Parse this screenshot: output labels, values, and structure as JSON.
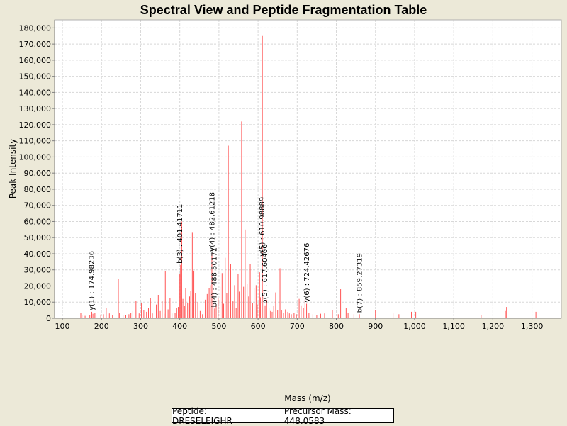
{
  "chart_data": {
    "type": "bar",
    "title": "Spectral View and Peptide Fragmentation Table",
    "xlabel": "Mass (m/z)",
    "ylabel": "Peak Intensity",
    "xlim": [
      80,
      1375
    ],
    "ylim": [
      0,
      185000
    ],
    "xticks": [
      100,
      200,
      300,
      400,
      500,
      600,
      700,
      800,
      900,
      1000,
      1100,
      1200,
      1300
    ],
    "xtick_labels": [
      "100",
      "200",
      "300",
      "400",
      "500",
      "600",
      "700",
      "800",
      "900",
      "1,000",
      "1,100",
      "1,200",
      "1,300"
    ],
    "yticks": [
      0,
      10000,
      20000,
      30000,
      40000,
      50000,
      60000,
      70000,
      80000,
      90000,
      100000,
      110000,
      120000,
      130000,
      140000,
      150000,
      160000,
      170000,
      180000
    ],
    "ytick_labels": [
      "0",
      "10,000",
      "20,000",
      "30,000",
      "40,000",
      "50,000",
      "60,000",
      "70,000",
      "80,000",
      "90,000",
      "100,000",
      "110,000",
      "120,000",
      "130,000",
      "140,000",
      "150,000",
      "160,000",
      "170,000",
      "180,000"
    ],
    "grid": true,
    "peak_color": "#ff5555",
    "peaks": [
      [
        147,
        3500
      ],
      [
        150,
        2000
      ],
      [
        158,
        1500
      ],
      [
        170,
        2200
      ],
      [
        175,
        4000
      ],
      [
        178,
        2800
      ],
      [
        183,
        3200
      ],
      [
        186,
        1800
      ],
      [
        198,
        2300
      ],
      [
        205,
        2500
      ],
      [
        212,
        6500
      ],
      [
        220,
        3000
      ],
      [
        228,
        2000
      ],
      [
        243,
        24500
      ],
      [
        246,
        3500
      ],
      [
        255,
        2000
      ],
      [
        262,
        1800
      ],
      [
        270,
        2500
      ],
      [
        275,
        3500
      ],
      [
        280,
        4500
      ],
      [
        288,
        11000
      ],
      [
        296,
        3000
      ],
      [
        302,
        9500
      ],
      [
        308,
        5000
      ],
      [
        315,
        4000
      ],
      [
        320,
        6500
      ],
      [
        325,
        12500
      ],
      [
        330,
        3000
      ],
      [
        340,
        8500
      ],
      [
        345,
        14500
      ],
      [
        350,
        4500
      ],
      [
        355,
        11000
      ],
      [
        360,
        2800
      ],
      [
        363,
        29000
      ],
      [
        370,
        5500
      ],
      [
        375,
        12500
      ],
      [
        380,
        3000
      ],
      [
        388,
        3500
      ],
      [
        392,
        6500
      ],
      [
        396,
        7000
      ],
      [
        400,
        27500
      ],
      [
        402,
        33000
      ],
      [
        405,
        60000
      ],
      [
        408,
        12000
      ],
      [
        412,
        7500
      ],
      [
        415,
        18500
      ],
      [
        420,
        9500
      ],
      [
        425,
        13500
      ],
      [
        428,
        17000
      ],
      [
        432,
        53000
      ],
      [
        436,
        29500
      ],
      [
        440,
        15500
      ],
      [
        446,
        10000
      ],
      [
        452,
        4500
      ],
      [
        458,
        2500
      ],
      [
        465,
        11500
      ],
      [
        470,
        15000
      ],
      [
        475,
        18500
      ],
      [
        478,
        20500
      ],
      [
        482,
        40500
      ],
      [
        485,
        16000
      ],
      [
        489,
        6000
      ],
      [
        493,
        8500
      ],
      [
        498,
        12500
      ],
      [
        503,
        19500
      ],
      [
        508,
        28000
      ],
      [
        512,
        9000
      ],
      [
        516,
        37500
      ],
      [
        520,
        15500
      ],
      [
        524,
        107000
      ],
      [
        530,
        33500
      ],
      [
        536,
        10500
      ],
      [
        540,
        20500
      ],
      [
        544,
        6500
      ],
      [
        549,
        27500
      ],
      [
        552,
        16500
      ],
      [
        558,
        122000
      ],
      [
        563,
        19500
      ],
      [
        567,
        55000
      ],
      [
        572,
        21500
      ],
      [
        576,
        13500
      ],
      [
        580,
        33500
      ],
      [
        586,
        9500
      ],
      [
        590,
        18500
      ],
      [
        595,
        20500
      ],
      [
        598,
        8500
      ],
      [
        604,
        28500
      ],
      [
        606,
        13000
      ],
      [
        611,
        175000
      ],
      [
        615,
        17500
      ],
      [
        618,
        8000
      ],
      [
        622,
        11500
      ],
      [
        628,
        6500
      ],
      [
        632,
        4500
      ],
      [
        636,
        4000
      ],
      [
        640,
        7500
      ],
      [
        645,
        16000
      ],
      [
        650,
        5000
      ],
      [
        656,
        31000
      ],
      [
        660,
        5000
      ],
      [
        665,
        3500
      ],
      [
        670,
        5500
      ],
      [
        676,
        4000
      ],
      [
        680,
        3000
      ],
      [
        685,
        2500
      ],
      [
        692,
        3500
      ],
      [
        698,
        2500
      ],
      [
        705,
        12000
      ],
      [
        710,
        8000
      ],
      [
        716,
        6500
      ],
      [
        720,
        11500
      ],
      [
        724,
        9000
      ],
      [
        730,
        3500
      ],
      [
        740,
        2500
      ],
      [
        750,
        2000
      ],
      [
        760,
        2800
      ],
      [
        770,
        3000
      ],
      [
        790,
        5000
      ],
      [
        805,
        2500
      ],
      [
        811,
        18000
      ],
      [
        825,
        6500
      ],
      [
        830,
        3500
      ],
      [
        845,
        2500
      ],
      [
        859,
        2500
      ],
      [
        900,
        5000
      ],
      [
        945,
        3000
      ],
      [
        960,
        2500
      ],
      [
        992,
        4000
      ],
      [
        1003,
        4000
      ],
      [
        1170,
        2000
      ],
      [
        1232,
        4500
      ],
      [
        1235,
        7000
      ],
      [
        1310,
        4000
      ]
    ],
    "annotations": [
      {
        "label": "y(1) : 174.98236",
        "x": 175,
        "y": 4000
      },
      {
        "label": "b(3) : 401.41711",
        "x": 401,
        "y": 33000
      },
      {
        "label": "y(4) : 482.61218",
        "x": 482.6,
        "y": 40500
      },
      {
        "label": "b(4) : 488.50171",
        "x": 488.5,
        "y": 6000
      },
      {
        "label": "y(5) : 610.98889",
        "x": 611,
        "y": 37500
      },
      {
        "label": "b(5) : 617.60406",
        "x": 617.6,
        "y": 8000
      },
      {
        "label": "y(6) : 724.42676",
        "x": 724.4,
        "y": 9000
      },
      {
        "label": "b(7) : 859.27319",
        "x": 859.3,
        "y": 2500
      }
    ]
  },
  "legend": {
    "peptide": "Peptide: DRESELEIGHR",
    "precursor": "Precursor Mass: 448.0583"
  }
}
